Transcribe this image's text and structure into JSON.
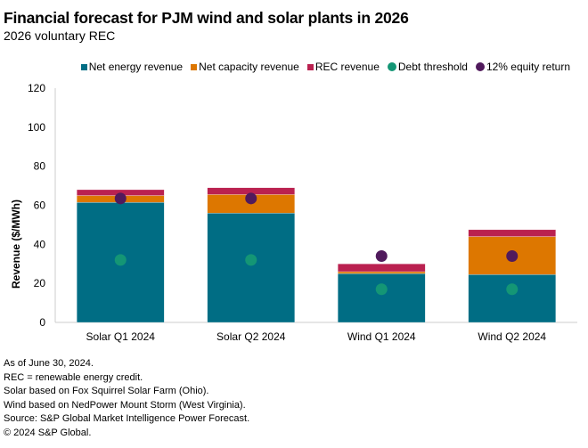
{
  "header": {
    "title": "Financial forecast for PJM wind and solar plants in 2026",
    "subtitle": "2026 voluntary REC"
  },
  "legend": [
    {
      "label": "Net energy revenue",
      "shape": "square",
      "color": "#006D84"
    },
    {
      "label": "Net capacity revenue",
      "shape": "square",
      "color": "#DD7700"
    },
    {
      "label": "REC revenue",
      "shape": "square",
      "color": "#BA2150"
    },
    {
      "label": "Debt threshold",
      "shape": "circle",
      "color": "#149675"
    },
    {
      "label": "12% equity return",
      "shape": "circle",
      "color": "#501A5C"
    }
  ],
  "chart_data": {
    "type": "bar",
    "stacked": true,
    "title": "Financial forecast for PJM wind and solar plants in 2026",
    "subtitle": "2026 voluntary REC",
    "xlabel": "",
    "ylabel": "Revenue ($/MWh)",
    "ylim": [
      0,
      120
    ],
    "yticks": [
      0,
      20,
      40,
      60,
      80,
      100,
      120
    ],
    "grid": false,
    "legend_position": "top-right",
    "categories": [
      "Solar Q1 2024",
      "Solar Q2 2024",
      "Wind Q1 2024",
      "Wind Q2 2024"
    ],
    "series": [
      {
        "name": "Net energy revenue",
        "kind": "bar",
        "color": "#006D84",
        "values": [
          61.5,
          56,
          25,
          24.5
        ]
      },
      {
        "name": "Net capacity revenue",
        "kind": "bar",
        "color": "#DD7700",
        "values": [
          3.5,
          9.5,
          1,
          19.5
        ]
      },
      {
        "name": "REC revenue",
        "kind": "bar",
        "color": "#BA2150",
        "values": [
          3,
          3.5,
          4,
          3.5
        ]
      },
      {
        "name": "Debt threshold",
        "kind": "point",
        "color": "#149675",
        "values": [
          32,
          32,
          17,
          17
        ]
      },
      {
        "name": "12% equity return",
        "kind": "point",
        "color": "#501A5C",
        "values": [
          63.5,
          63.5,
          34,
          34
        ]
      }
    ]
  },
  "notes": [
    "As of June 30, 2024.",
    "REC = renewable energy credit.",
    "Solar based on Fox Squirrel Solar Farm (Ohio).",
    "Wind based on NedPower Mount Storm (West Virginia).",
    "Source: S&P Global Market Intelligence Power Forecast.",
    "© 2024 S&P Global."
  ]
}
